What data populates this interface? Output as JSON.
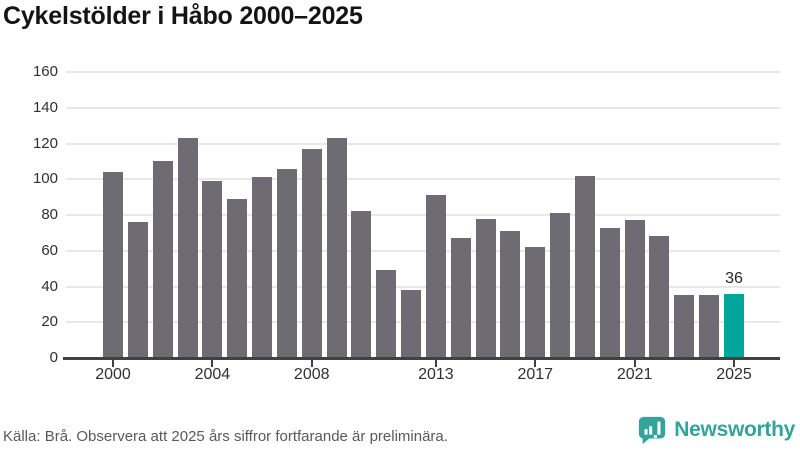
{
  "title": "Cykelstölder i Håbo 2000–2025",
  "footer": {
    "source_note": "Källa: Brå. Observera att 2025 års siffror fortfarande är preliminära.",
    "brand": "Newsworthy"
  },
  "colors": {
    "bar": "#6e6c72",
    "accent": "#00a59c",
    "brand_teal": "#34a39b",
    "gridline": "#e8e8e8",
    "axis": "#414141"
  },
  "chart_data": {
    "type": "bar",
    "title": "Cykelstölder i Håbo 2000–2025",
    "categories": [
      2000,
      2001,
      2002,
      2003,
      2004,
      2005,
      2006,
      2007,
      2008,
      2009,
      2010,
      2011,
      2012,
      2013,
      2014,
      2015,
      2016,
      2017,
      2018,
      2019,
      2020,
      2021,
      2022,
      2023,
      2024,
      2025
    ],
    "values": [
      104,
      76,
      110,
      123,
      99,
      89,
      101,
      106,
      117,
      123,
      82,
      49,
      38,
      91,
      67,
      78,
      71,
      62,
      81,
      102,
      73,
      77,
      68,
      35,
      35,
      36
    ],
    "highlight_index": 25,
    "highlight_value_label": "36",
    "x_tick_labels": [
      "2000",
      "2004",
      "2008",
      "2013",
      "2017",
      "2021",
      "2025"
    ],
    "y_ticks": [
      0,
      20,
      40,
      60,
      80,
      100,
      120,
      140,
      160
    ],
    "ylim": [
      0,
      160
    ],
    "xlabel": "",
    "ylabel": "",
    "grid": "horizontal",
    "legend": "none"
  }
}
